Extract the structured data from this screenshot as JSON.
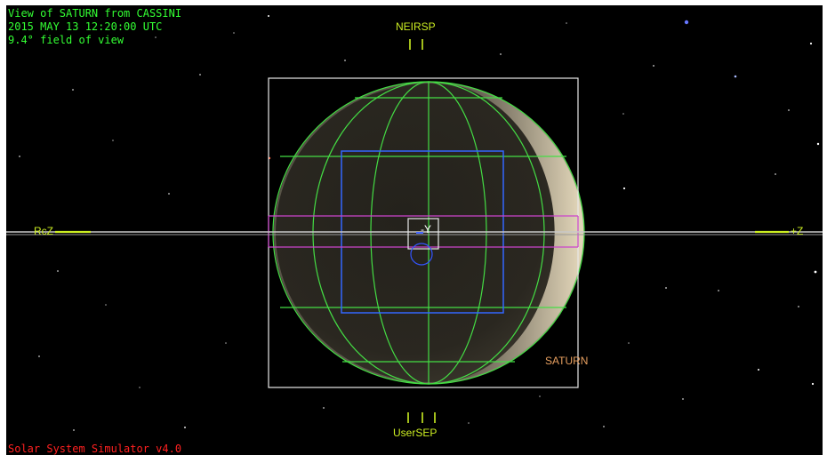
{
  "hud": {
    "title": "View of SATURN from CASSINI",
    "datetime": "2015 MAY 13 12:20:00 UTC",
    "fov": "9.4° field of view",
    "footer": "Solar System Simulator v4.0"
  },
  "labels": {
    "top_marker": "NEIRSP",
    "bottom_marker": "UserSEP",
    "left_marker": "RcZ",
    "right_marker": "+Z",
    "center_axis": "-Y",
    "target_name": "SATURN"
  },
  "colors": {
    "hud_text": "#33ff33",
    "footer_text": "#ff2020",
    "target_label": "#e8a060",
    "grid": "#44dd44",
    "inner_box": "#3366ff",
    "ring_band": "#cc44cc",
    "markers": "#ccee22"
  }
}
